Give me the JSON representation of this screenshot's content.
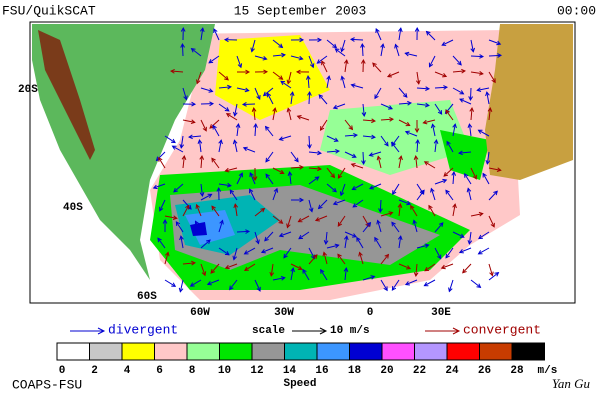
{
  "header": {
    "left": "FSU/QuikSCAT",
    "center": "15 September 2003",
    "right": "00:00"
  },
  "map": {
    "lat_labels": [
      "20S",
      "40S",
      "60S"
    ],
    "lon_labels": [
      "60W",
      "30W",
      "0",
      "30E"
    ]
  },
  "legend": {
    "divergent": "divergent",
    "scale": "scale",
    "scale_value": "10 m/s",
    "convergent": "convergent"
  },
  "colorbar": {
    "title": "Speed",
    "unit": "m/s",
    "colors": [
      "#ffffff",
      "#c8c8c8",
      "#ffff00",
      "#ffc8c8",
      "#96ff96",
      "#00e600",
      "#969696",
      "#00b4b4",
      "#3c96ff",
      "#0000d2",
      "#ff50ff",
      "#b496ff",
      "#ff0000",
      "#c83c00",
      "#000000"
    ],
    "ticks": [
      0,
      2,
      4,
      6,
      8,
      10,
      12,
      14,
      16,
      18,
      20,
      22,
      24,
      26,
      28
    ]
  },
  "footer": {
    "left": "COAPS-FSU",
    "right": "Yan Gu"
  }
}
